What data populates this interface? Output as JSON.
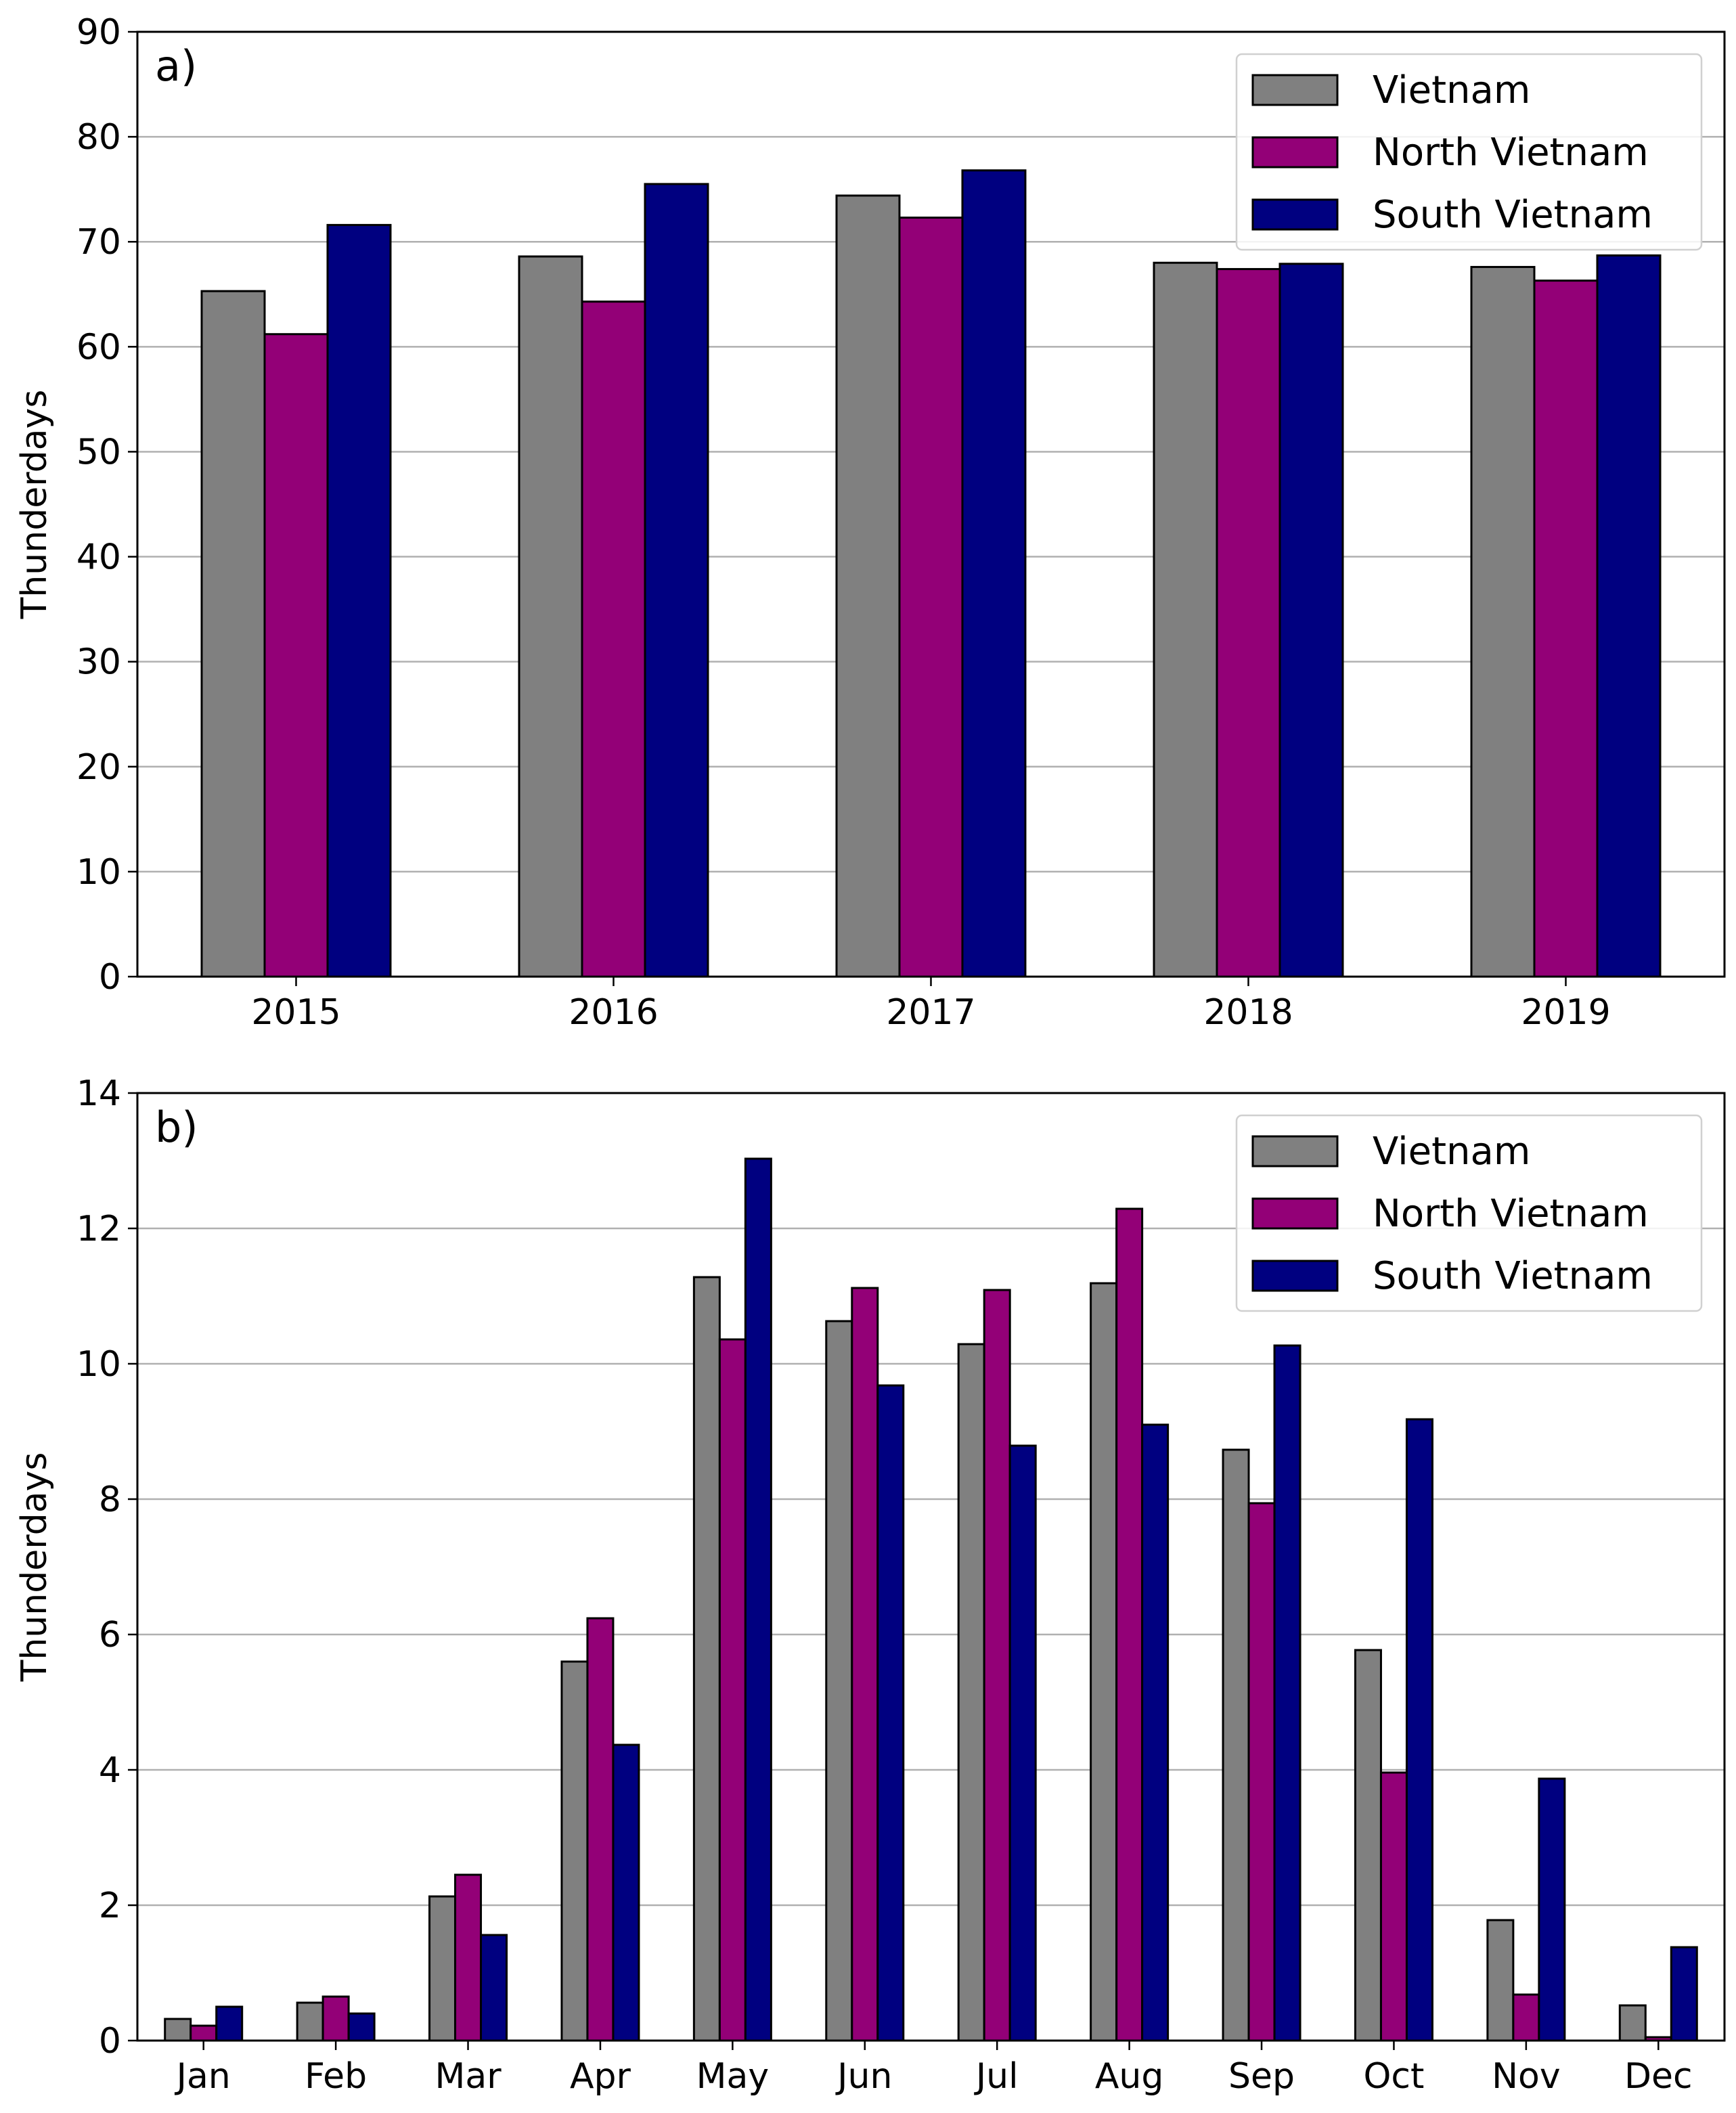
{
  "chart_data": [
    {
      "type": "bar",
      "panel_label": "a)",
      "ylabel": "Thunderdays",
      "xlabel": "",
      "ylim": [
        0,
        90
      ],
      "yticks": [
        0,
        10,
        20,
        30,
        40,
        50,
        60,
        70,
        80,
        90
      ],
      "grid": "horizontal",
      "legend_position": "top-right",
      "categories": [
        "2015",
        "2016",
        "2017",
        "2018",
        "2019"
      ],
      "series": [
        {
          "name": "Vietnam",
          "color": "#808080",
          "values": [
            65.3,
            68.6,
            74.4,
            68.0,
            67.6
          ]
        },
        {
          "name": "North Vietnam",
          "color": "#930077",
          "values": [
            61.2,
            64.3,
            72.3,
            67.4,
            66.3
          ]
        },
        {
          "name": "South Vietnam",
          "color": "#000080",
          "values": [
            71.6,
            75.5,
            76.8,
            67.9,
            68.7
          ]
        }
      ]
    },
    {
      "type": "bar",
      "panel_label": "b)",
      "ylabel": "Thunderdays",
      "xlabel": "",
      "ylim": [
        0,
        14
      ],
      "yticks": [
        0,
        2,
        4,
        6,
        8,
        10,
        12,
        14
      ],
      "grid": "horizontal",
      "legend_position": "top-right",
      "categories": [
        "Jan",
        "Feb",
        "Mar",
        "Apr",
        "May",
        "Jun",
        "Jul",
        "Aug",
        "Sep",
        "Oct",
        "Nov",
        "Dec"
      ],
      "series": [
        {
          "name": "Vietnam",
          "color": "#808080",
          "values": [
            0.32,
            0.56,
            2.13,
            5.6,
            11.28,
            10.63,
            10.29,
            11.19,
            8.73,
            5.77,
            1.78,
            0.52
          ]
        },
        {
          "name": "North Vietnam",
          "color": "#930077",
          "values": [
            0.22,
            0.65,
            2.45,
            6.24,
            10.36,
            11.12,
            11.09,
            12.29,
            7.94,
            3.96,
            0.68,
            0.05
          ]
        },
        {
          "name": "South Vietnam",
          "color": "#000080",
          "values": [
            0.5,
            0.4,
            1.56,
            4.37,
            13.03,
            9.68,
            8.79,
            9.1,
            10.27,
            9.18,
            3.87,
            1.38
          ]
        }
      ]
    }
  ]
}
